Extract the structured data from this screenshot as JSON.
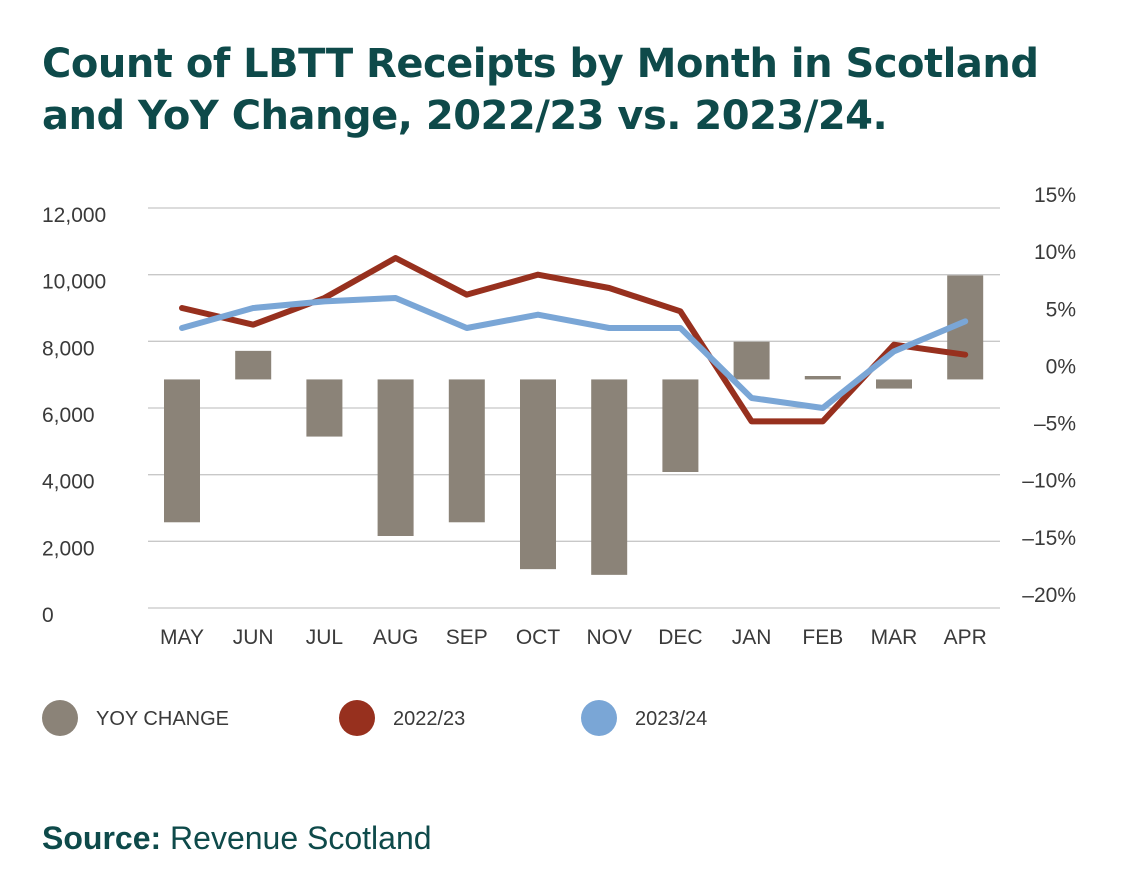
{
  "colors": {
    "title": "#0e4a4a",
    "bar": "#8b8378",
    "series_2022": "#97301e",
    "series_2023": "#7aa6d6",
    "grid": "#c8c8c8",
    "source": "#0e4a4a"
  },
  "title_lines": [
    "Count of LBTT Receipts by Month in Scotland",
    "and YoY Change, 2022/23 vs. 2023/24."
  ],
  "source": {
    "label": "Source:",
    "value": " Revenue Scotland"
  },
  "chart_data": {
    "type": "bar",
    "categories": [
      "MAY",
      "JUN",
      "JUL",
      "AUG",
      "SEP",
      "OCT",
      "NOV",
      "DEC",
      "JAN",
      "FEB",
      "MAR",
      "APR"
    ],
    "left_axis": {
      "ylim": [
        0,
        12000
      ],
      "ticks": [
        0,
        2000,
        4000,
        6000,
        8000,
        10000,
        12000
      ],
      "tick_labels": [
        "0",
        "2,000",
        "4,000",
        "6,000",
        "8,000",
        "10,000",
        "12,000"
      ]
    },
    "right_axis": {
      "ylim": [
        -20,
        15
      ],
      "ticks": [
        -20,
        -15,
        -10,
        -5,
        0,
        5,
        10,
        15
      ],
      "tick_labels": [
        "–20%",
        "–15%",
        "–10%",
        "–5%",
        "0%",
        "5%",
        "10%",
        "15%"
      ]
    },
    "series": [
      {
        "name": "YOY CHANGE",
        "type": "bar",
        "axis": "right",
        "values": [
          -12.5,
          2.5,
          -5.0,
          -13.7,
          -12.5,
          -16.6,
          -17.1,
          -8.1,
          3.3,
          0.3,
          -0.8,
          9.1
        ]
      },
      {
        "name": "2022/23",
        "type": "line",
        "axis": "left",
        "values": [
          9000,
          8500,
          9300,
          10500,
          9400,
          10000,
          9600,
          8900,
          5600,
          5600,
          7900,
          7600
        ]
      },
      {
        "name": "2023/24",
        "type": "line",
        "axis": "left",
        "values": [
          8400,
          9000,
          9200,
          9300,
          8400,
          8800,
          8400,
          8400,
          6300,
          6000,
          7700,
          8600
        ]
      }
    ],
    "grid": true,
    "legend_position": "bottom-left"
  }
}
